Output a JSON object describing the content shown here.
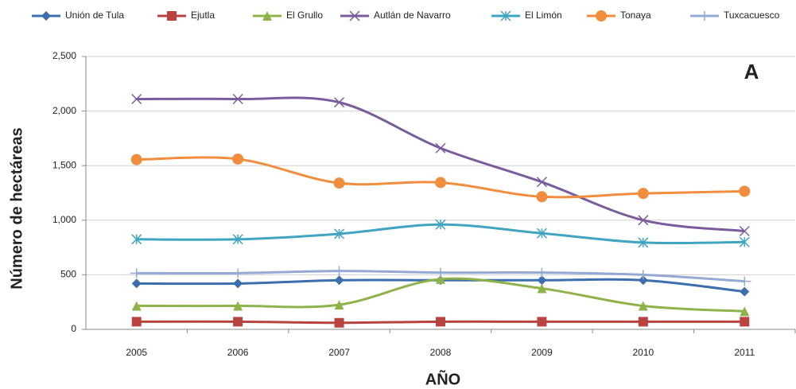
{
  "chart_data": {
    "type": "line",
    "title": "A",
    "x_label": "AÑO",
    "y_label": "Número de hectáreas",
    "categories": [
      "2005",
      "2006",
      "2007",
      "2008",
      "2009",
      "2010",
      "2011"
    ],
    "ylim": [
      0,
      2500
    ],
    "yticks": [
      0,
      500,
      {
        "value": 1000,
        "label": "1,000"
      },
      {
        "value": 1500,
        "label": "1,500"
      },
      {
        "value": 2000,
        "label": "2,000"
      },
      {
        "value": 2500,
        "label": "2,500"
      }
    ],
    "grid": true,
    "smooth": true,
    "legend": "top",
    "series": [
      {
        "name": "Unión de Tula",
        "color": "#3c6fac",
        "marker": "diamond",
        "values": [
          420,
          420,
          450,
          450,
          450,
          450,
          345
        ]
      },
      {
        "name": "Ejutla",
        "color": "#b8433f",
        "marker": "square",
        "values": [
          70,
          70,
          60,
          70,
          70,
          70,
          70
        ]
      },
      {
        "name": "El Grullo",
        "color": "#8fb34a",
        "marker": "triangle",
        "values": [
          215,
          215,
          225,
          460,
          375,
          215,
          165
        ]
      },
      {
        "name": "Autlán de Navarro",
        "color": "#7a5c9c",
        "marker": "x",
        "values": [
          2110,
          2110,
          2080,
          1660,
          1350,
          1000,
          900
        ]
      },
      {
        "name": "El Limón",
        "color": "#40a5c0",
        "marker": "asterisk",
        "values": [
          825,
          825,
          875,
          960,
          880,
          795,
          800
        ]
      },
      {
        "name": "Tonaya",
        "color": "#f08e3e",
        "marker": "circle",
        "values": [
          1555,
          1560,
          1340,
          1345,
          1215,
          1245,
          1265
        ]
      },
      {
        "name": "Tuxcacuesco",
        "color": "#94aad4",
        "marker": "plus",
        "values": [
          515,
          515,
          535,
          520,
          520,
          500,
          440
        ]
      }
    ]
  }
}
